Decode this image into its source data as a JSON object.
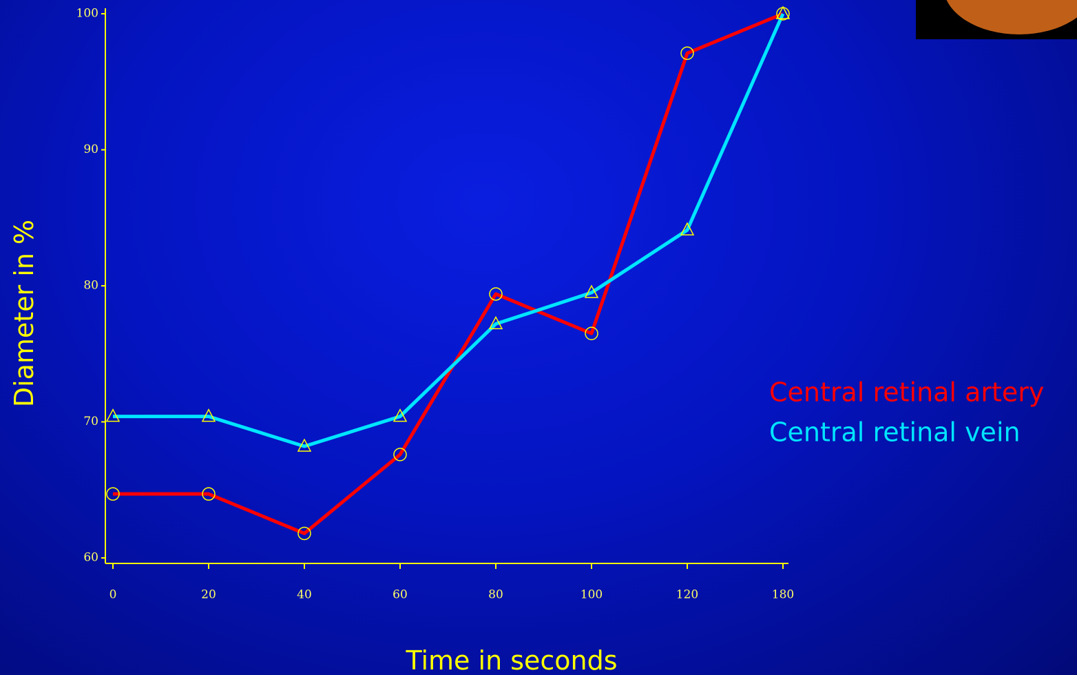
{
  "chart_data": {
    "type": "line",
    "categories": [
      "0",
      "20",
      "40",
      "60",
      "80",
      "100",
      "120",
      "180"
    ],
    "series": [
      {
        "name": "Central retinal artery",
        "color": "#ff0000",
        "marker": "circle",
        "values": [
          64.7,
          64.7,
          61.8,
          67.6,
          79.4,
          76.5,
          97.1,
          100
        ]
      },
      {
        "name": "Central retinal vein",
        "color": "#00e5ff",
        "marker": "triangle",
        "values": [
          70.4,
          70.4,
          68.2,
          70.4,
          77.2,
          79.5,
          84.1,
          100
        ]
      }
    ],
    "ylim": [
      60,
      100
    ],
    "yticks": [
      60,
      70,
      80,
      90,
      100
    ],
    "x_label": "Time in seconds",
    "y_label": "Diameter in %",
    "axis_color": "#ffff00",
    "marker_color": "#ffff00"
  }
}
